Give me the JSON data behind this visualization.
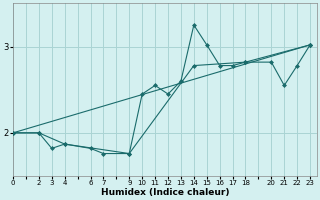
{
  "xlabel": "Humidex (Indice chaleur)",
  "bg_color": "#d4f0f0",
  "line_color": "#1a6b6b",
  "grid_color": "#aad4d4",
  "xlim": [
    0,
    23.5
  ],
  "ylim": [
    1.5,
    3.5
  ],
  "yticks": [
    2,
    3
  ],
  "xtick_positions": [
    0,
    1,
    2,
    3,
    4,
    5,
    6,
    7,
    8,
    9,
    10,
    11,
    12,
    13,
    14,
    15,
    16,
    17,
    18,
    19,
    20,
    21,
    22,
    23
  ],
  "xtick_labels": [
    "0",
    "",
    "2",
    "3",
    "4",
    "",
    "6",
    "7",
    "",
    "9",
    "10",
    "11",
    "12",
    "13",
    "14",
    "15",
    "16",
    "17",
    "18",
    "",
    "20",
    "21",
    "22",
    "23"
  ],
  "series_main": {
    "x": [
      0,
      2,
      3,
      4,
      6,
      7,
      9,
      10,
      11,
      12,
      13,
      14,
      15,
      16,
      17,
      18,
      20,
      21,
      22,
      23
    ],
    "y": [
      2.0,
      2.0,
      1.82,
      1.87,
      1.82,
      1.76,
      1.76,
      2.45,
      2.55,
      2.45,
      2.6,
      3.25,
      3.02,
      2.78,
      2.78,
      2.82,
      2.82,
      2.55,
      2.78,
      3.02
    ]
  },
  "series_upper": {
    "x": [
      0,
      23
    ],
    "y": [
      2.0,
      3.02
    ]
  },
  "series_lower": {
    "x": [
      0,
      2,
      4,
      9,
      14,
      18,
      23
    ],
    "y": [
      2.0,
      2.0,
      1.87,
      1.76,
      2.78,
      2.82,
      3.02
    ]
  }
}
